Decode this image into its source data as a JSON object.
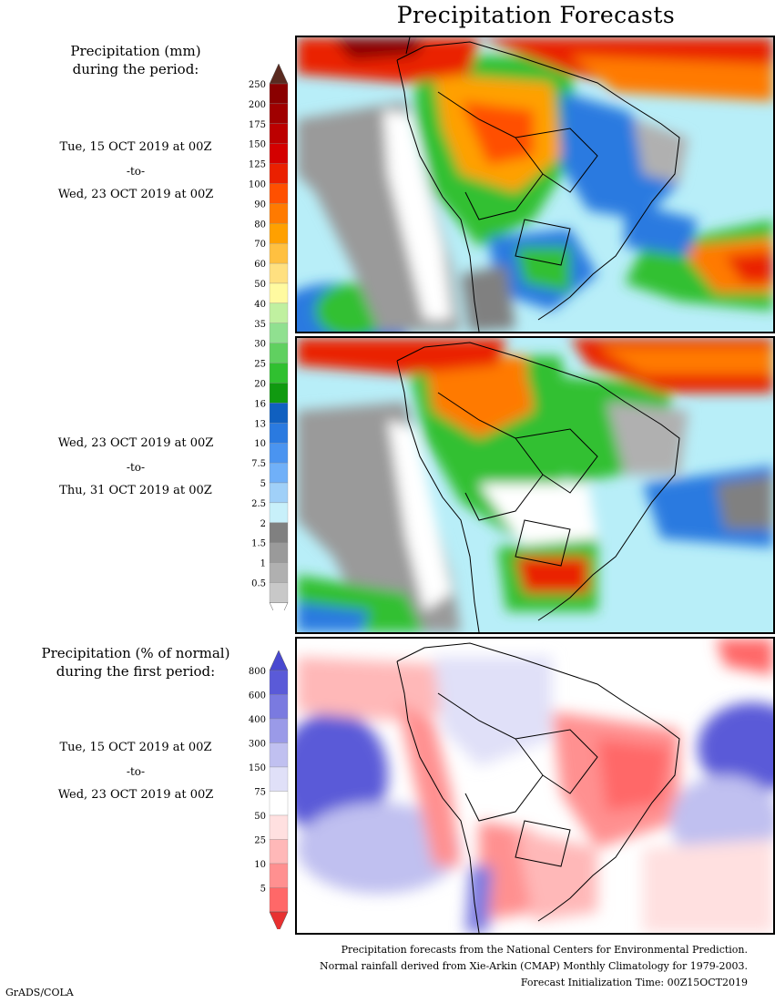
{
  "title": "Precipitation Forecasts",
  "left_panel": {
    "precip_heading": [
      "Precipitation (mm)",
      "during the period:"
    ],
    "period1": {
      "start": "Tue, 15 OCT 2019 at 00Z",
      "sep": "-to-",
      "end": "Wed, 23 OCT 2019 at 00Z"
    },
    "period2": {
      "start": "Wed, 23 OCT 2019 at 00Z",
      "sep": "-to-",
      "end": "Thu, 31 OCT 2019 at 00Z"
    },
    "pct_heading": [
      "Precipitation (% of normal)",
      "during the first period:"
    ],
    "period3": {
      "start": "Tue, 15 OCT 2019 at 00Z",
      "sep": "-to-",
      "end": "Wed, 23 OCT 2019 at 00Z"
    }
  },
  "precip_scale": {
    "labels": [
      "250",
      "200",
      "175",
      "150",
      "125",
      "100",
      "90",
      "80",
      "70",
      "60",
      "50",
      "40",
      "35",
      "30",
      "25",
      "20",
      "16",
      "13",
      "10",
      "7.5",
      "5",
      "2.5",
      "2",
      "1.5",
      "1",
      "0.5"
    ],
    "colors": [
      "#8a0000",
      "#a00000",
      "#bc0000",
      "#d40000",
      "#ea2000",
      "#ff5000",
      "#ff7a00",
      "#ffa000",
      "#ffc040",
      "#ffe080",
      "#fffaa0",
      "#c0f0a0",
      "#90e090",
      "#60d060",
      "#30c030",
      "#109a10",
      "#1060c0",
      "#2a7ae0",
      "#4a94f0",
      "#70b0f8",
      "#a0d0f8",
      "#c8f0fa",
      "#808080",
      "#9a9a9a",
      "#b0b0b0",
      "#c8c8c8"
    ],
    "top_arrow_color": "#5a2a20",
    "bottom_arrow_color": "#ffffff"
  },
  "pct_scale": {
    "labels": [
      "800",
      "600",
      "400",
      "300",
      "150",
      "75",
      "50",
      "25",
      "10",
      "5"
    ],
    "colors": [
      "#5a5ad8",
      "#7a7ae0",
      "#9a9ae8",
      "#c0c0f0",
      "#e0e0f8",
      "#ffffff",
      "#ffe0e0",
      "#ffb8b8",
      "#ff9090",
      "#ff6868"
    ],
    "top_arrow_color": "#4848d0",
    "bottom_arrow_color": "#e83030"
  },
  "credits": [
    "Precipitation forecasts from the National Centers for Environmental Prediction.",
    "Normal rainfall derived from Xie-Arkin (CMAP) Monthly Climatology for 1979-2003.",
    "Forecast Initialization Time: 00Z15OCT2019"
  ],
  "footer": "GrADS/COLA"
}
